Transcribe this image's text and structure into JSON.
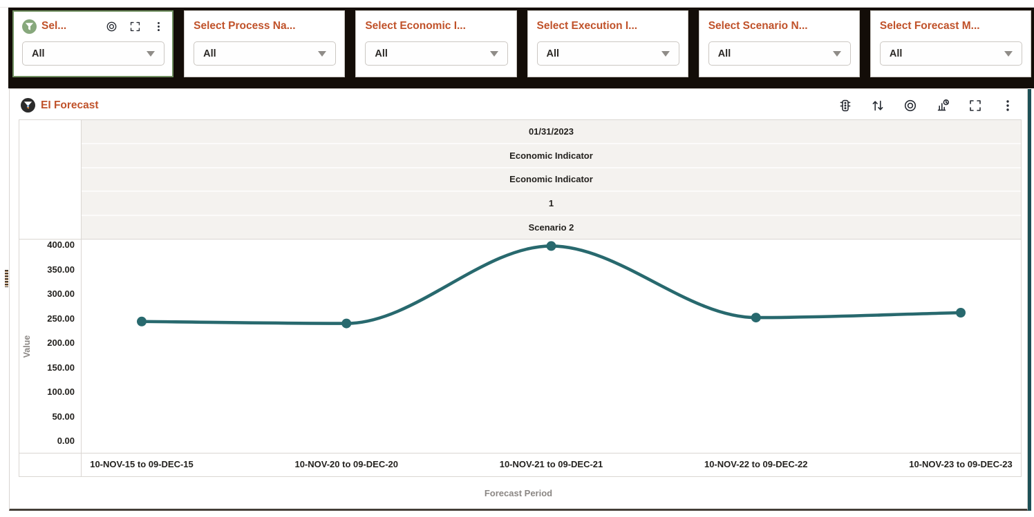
{
  "filters": {
    "cards": [
      {
        "title": "Sel...",
        "value": "All",
        "selected": true,
        "leading_icon": "filter",
        "header_icons": [
          "target",
          "maximize",
          "menu"
        ]
      },
      {
        "title": "Select Process Na...",
        "value": "All",
        "selected": false,
        "header_icons": []
      },
      {
        "title": "Select Economic I...",
        "value": "All",
        "selected": false,
        "header_icons": []
      },
      {
        "title": "Select Execution I...",
        "value": "All",
        "selected": false,
        "header_icons": []
      },
      {
        "title": "Select Scenario N...",
        "value": "All",
        "selected": false,
        "header_icons": []
      },
      {
        "title": "Select Forecast M...",
        "value": "All",
        "selected": false,
        "header_icons": []
      }
    ]
  },
  "panel": {
    "title": "EI Forecast",
    "leading_icon": "filter",
    "toolbar_icons": [
      "traffic-light",
      "sort",
      "target",
      "chart-type",
      "maximize",
      "menu"
    ]
  },
  "chart_data": {
    "type": "line",
    "header_rows": [
      "01/31/2023",
      "Economic Indicator",
      "Economic Indicator",
      "1",
      "Scenario 2"
    ],
    "categories": [
      "10-NOV-15 to 09-DEC-15",
      "10-NOV-20 to 09-DEC-20",
      "10-NOV-21 to 09-DEC-21",
      "10-NOV-22 to 09-DEC-22",
      "10-NOV-23 to 09-DEC-23"
    ],
    "values": [
      244,
      240,
      398,
      252,
      262
    ],
    "title": "EI Forecast",
    "xlabel": "Forecast Period",
    "ylabel": "Value",
    "ylim": [
      0,
      400
    ],
    "ytick_step": 50,
    "ytick_decimals": 2,
    "grid": false,
    "legend": "none",
    "line_color": "#28696e",
    "marker": "circle"
  },
  "colors": {
    "accent_orange": "#c0522a",
    "line_teal": "#28696e",
    "selected_green": "#6f8f5f",
    "band_grey": "#f4f2ef",
    "top_band_black": "#130d08",
    "icon_dark": "#272b33",
    "scrollbar_teal": "#1d5056"
  }
}
